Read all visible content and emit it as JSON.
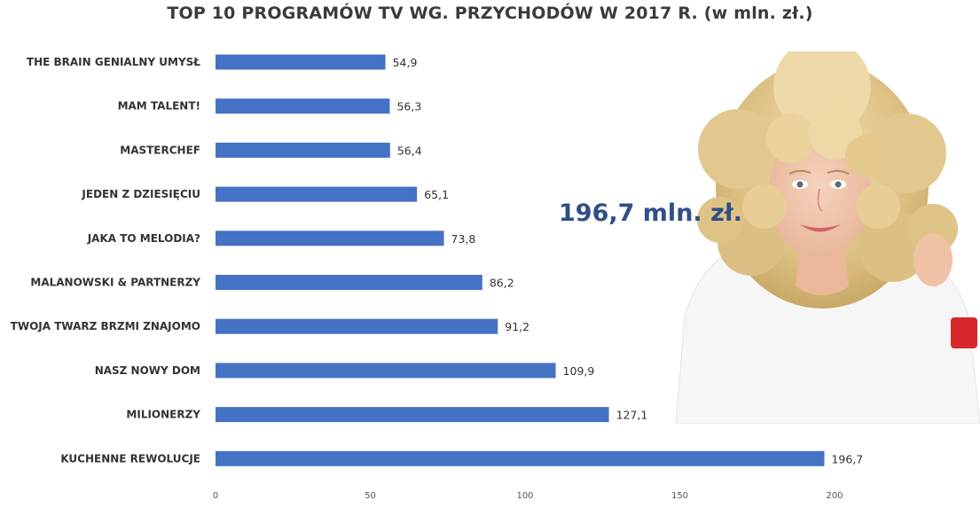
{
  "chart_data": {
    "type": "bar",
    "orientation": "horizontal",
    "title": "TOP 10 PROGRAMÓW TV WG. PRZYCHODÓW W 2017 R. (w mln. zł.)",
    "categories": [
      "THE BRAIN GENIALNY UMYSŁ",
      "MAM TALENT!",
      "MASTERCHEF",
      "JEDEN Z DZIESIĘCIU",
      "JAKA TO MELODIA?",
      "MALANOWSKI & PARTNERZY",
      "TWOJA TWARZ BRZMI ZNAJOMO",
      "NASZ NOWY DOM",
      "MILIONERZY",
      "KUCHENNE REWOLUCJE"
    ],
    "values": [
      54.9,
      56.3,
      56.4,
      65.1,
      73.8,
      86.2,
      91.2,
      109.9,
      127.1,
      196.7
    ],
    "value_labels": [
      "54,9",
      "56,3",
      "56,4",
      "65,1",
      "73,8",
      "86,2",
      "91,2",
      "109,9",
      "127,1",
      "196,7"
    ],
    "xlim": [
      0,
      200
    ],
    "xticks": [
      0,
      50,
      100,
      150,
      200
    ],
    "xlabel": "",
    "ylabel": "",
    "grid": false,
    "bar_color": "#4472c4",
    "annotation": "196,7 mln. zł."
  },
  "photo": {
    "description_icon": "woman-portrait-photo",
    "hair_color": "#e6cf98",
    "skin_color": "#f1c7ad",
    "shirt_color": "#f7f7f7",
    "bracelet_color": "#d8282b"
  },
  "colors": {
    "title": "#3b3b3b",
    "annotation": "#2f4f86"
  }
}
